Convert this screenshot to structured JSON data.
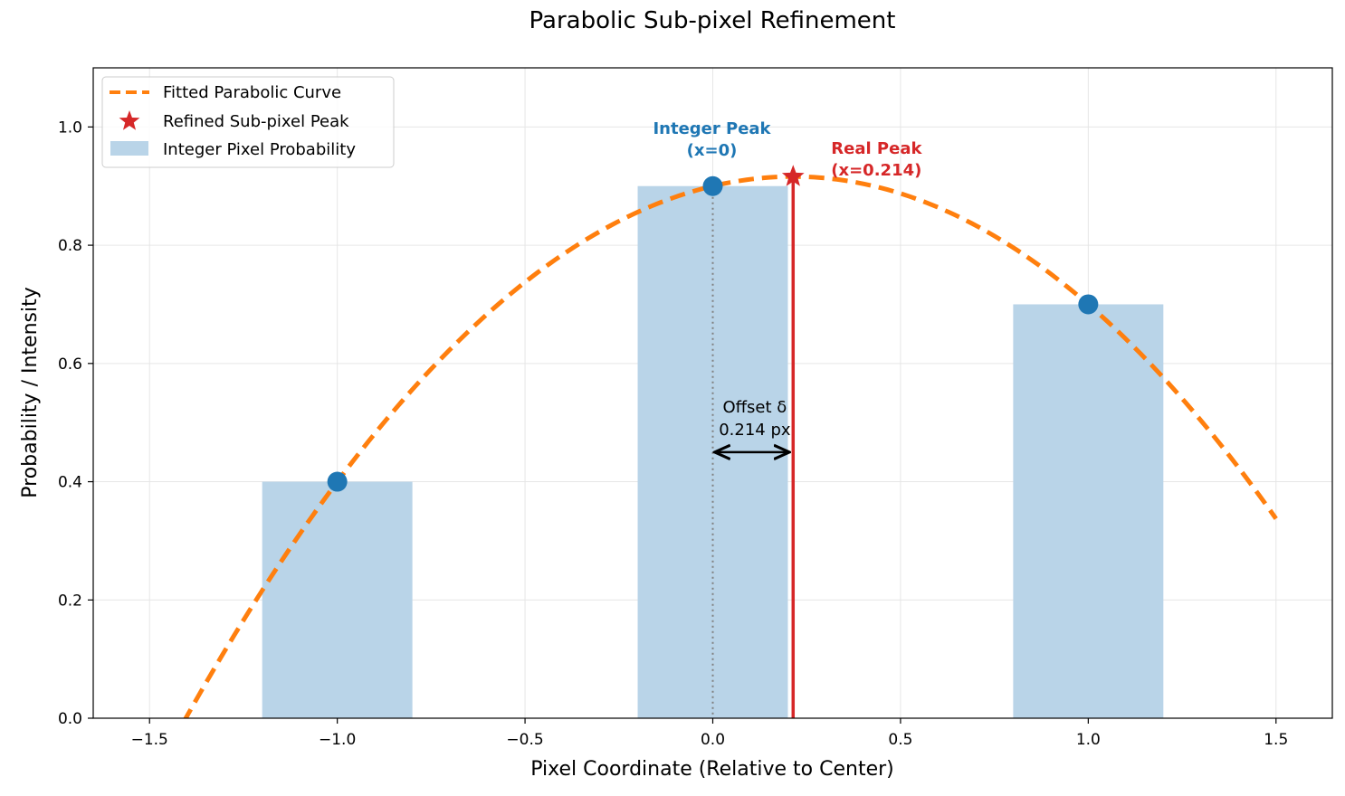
{
  "chart_data": {
    "type": "line",
    "title": "Parabolic Sub-pixel Refinement",
    "xlabel": "Pixel Coordinate (Relative to Center)",
    "ylabel": "Probability / Intensity",
    "xlim": [
      -1.65,
      1.65
    ],
    "ylim": [
      0,
      1.1
    ],
    "xticks": [
      -1.5,
      -1.0,
      -0.5,
      0.0,
      0.5,
      1.0,
      1.5
    ],
    "xtick_labels": [
      "−1.5",
      "−1.0",
      "−0.5",
      "0.0",
      "0.5",
      "1.0",
      "1.5"
    ],
    "yticks": [
      0.0,
      0.2,
      0.4,
      0.6,
      0.8,
      1.0
    ],
    "ytick_labels": [
      "0.0",
      "0.2",
      "0.4",
      "0.6",
      "0.8",
      "1.0"
    ],
    "grid": true,
    "legend_position": "top-left",
    "bars": {
      "name": "Integer Pixel Probability",
      "x": [
        -1.0,
        0.0,
        1.0
      ],
      "values": [
        0.4,
        0.9,
        0.7
      ],
      "width": 0.4,
      "color": "#b9d4e8"
    },
    "points": {
      "x": [
        -1.0,
        0.0,
        1.0
      ],
      "y": [
        0.4,
        0.9,
        0.7
      ],
      "color": "#1f77b4"
    },
    "curve": {
      "name": "Fitted Parabolic Curve",
      "a": -0.35,
      "b": 0.15,
      "c": 0.9,
      "x_range": [
        -1.5,
        1.5
      ],
      "color": "#ff7f0e"
    },
    "refined_peak": {
      "name": "Refined Sub-pixel Peak",
      "x": 0.214,
      "y": 0.916,
      "color": "#d62728"
    },
    "annotations": {
      "integer_peak_line1": "Integer Peak",
      "integer_peak_line2": "(x=0)",
      "real_peak_line1": "Real Peak",
      "real_peak_line2": "(x=0.214)",
      "offset_line1": "Offset δ",
      "offset_line2": "0.214 px",
      "offset_arrow_y": 0.45,
      "integer_color": "#1f77b4",
      "real_color": "#d62728"
    },
    "legend": [
      {
        "label": "Fitted Parabolic Curve"
      },
      {
        "label": "Refined Sub-pixel Peak"
      },
      {
        "label": "Integer Pixel Probability"
      }
    ]
  }
}
